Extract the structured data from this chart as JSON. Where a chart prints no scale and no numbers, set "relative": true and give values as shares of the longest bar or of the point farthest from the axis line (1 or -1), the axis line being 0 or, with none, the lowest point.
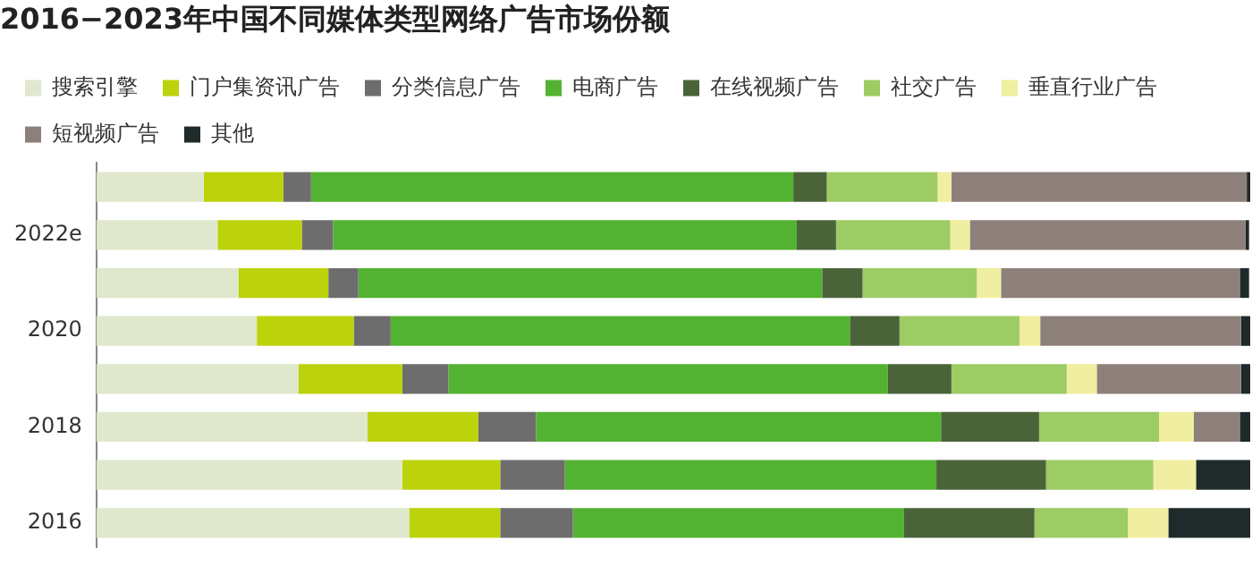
{
  "chart_data": {
    "type": "bar",
    "orientation": "horizontal",
    "stacked": true,
    "relative": true,
    "title": "2016−2023年中国不同媒体类型网络广告市场份额",
    "legend": "top left",
    "categories": [
      null,
      "2022e",
      null,
      "2020",
      null,
      "2018",
      null,
      "2016"
    ],
    "series": [
      {
        "name": "搜索引擎",
        "color": "#dfe8cc",
        "values": [
          0.093,
          0.105,
          0.123,
          0.139,
          0.175,
          0.235,
          0.265,
          0.271
        ]
      },
      {
        "name": "门户集资讯广告",
        "color": "#bcd20a",
        "values": [
          0.069,
          0.073,
          0.078,
          0.084,
          0.09,
          0.096,
          0.085,
          0.079
        ]
      },
      {
        "name": "分类信息广告",
        "color": "#6d6d6d",
        "values": [
          0.024,
          0.027,
          0.026,
          0.032,
          0.04,
          0.05,
          0.056,
          0.063
        ]
      },
      {
        "name": "电商广告",
        "color": "#53b231",
        "values": [
          0.418,
          0.402,
          0.402,
          0.398,
          0.381,
          0.351,
          0.322,
          0.287
        ]
      },
      {
        "name": "在线视频广告",
        "color": "#4a6339",
        "values": [
          0.029,
          0.034,
          0.035,
          0.043,
          0.055,
          0.085,
          0.095,
          0.113
        ]
      },
      {
        "name": "社交广告",
        "color": "#9dcb64",
        "values": [
          0.096,
          0.099,
          0.099,
          0.104,
          0.1,
          0.104,
          0.093,
          0.081
        ]
      },
      {
        "name": "垂直行业广告",
        "color": "#f0eea0",
        "values": [
          0.012,
          0.017,
          0.021,
          0.018,
          0.026,
          0.03,
          0.037,
          0.035
        ]
      },
      {
        "name": "短视频广告",
        "color": "#8d807a",
        "values": [
          0.256,
          0.239,
          0.207,
          0.174,
          0.125,
          0.04,
          0,
          0
        ]
      },
      {
        "name": "其他",
        "color": "#1f2a2a",
        "values": [
          0.003,
          0.003,
          0.008,
          0.008,
          0.008,
          0.009,
          0.047,
          0.071
        ]
      }
    ]
  }
}
